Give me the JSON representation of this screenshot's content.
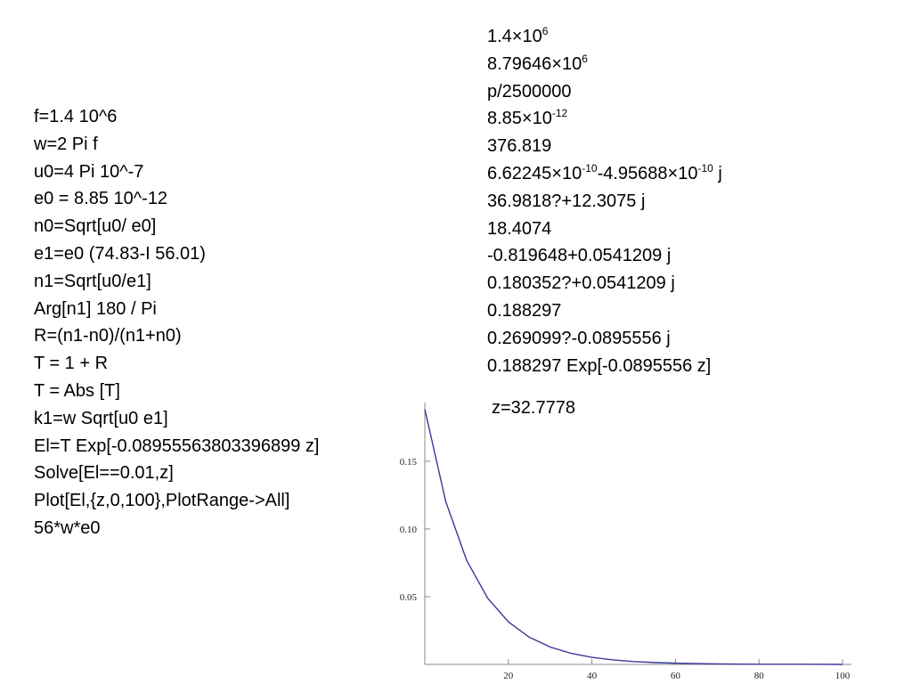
{
  "code": [
    "f=1.4 10^6",
    "w=2 Pi f",
    "u0=4 Pi 10^-7",
    "e0 = 8.85 10^-12",
    "n0=Sqrt[u0/ e0]",
    "e1=e0 (74.83-I 56.01)",
    "n1=Sqrt[u0/e1]",
    "Arg[n1] 180 / Pi",
    "R=(n1-n0)/(n1+n0)",
    "T = 1 + R",
    "T = Abs [T]",
    "k1=w Sqrt[u0 e1]",
    "El=T Exp[-0.08955563803396899 z]",
    "Solve[El==0.01,z]",
    "Plot[El,{z,0,100},PlotRange->All]",
    "56*w*e0"
  ],
  "outputs": [
    [
      {
        "text": "1.4×10"
      },
      {
        "sup": "6"
      }
    ],
    [
      {
        "text": "8.79646×10"
      },
      {
        "sup": "6"
      }
    ],
    "p/2500000",
    [
      {
        "text": "8.85×10"
      },
      {
        "sup": "-12"
      }
    ],
    "376.819",
    [
      {
        "text": "6.62245×10"
      },
      {
        "sup": "-10"
      },
      {
        "text": "-4.95688×10"
      },
      {
        "sup": "-10"
      },
      {
        "text": " j"
      }
    ],
    "36.9818?+12.3075 j",
    "18.4074",
    "-0.819648+0.0541209 j",
    "0.180352?+0.0541209 j",
    "0.188297",
    "0.269099?-0.0895556 j",
    "0.188297 Exp[-0.0895556 z]"
  ],
  "solution": "z=32.7778",
  "chart_data": {
    "type": "line",
    "x": [
      0,
      5,
      10,
      15,
      20,
      25,
      30,
      35,
      40,
      45,
      50,
      55,
      60,
      70,
      80,
      90,
      100
    ],
    "series": [
      {
        "color": "#3a3a9a",
        "values": [
          0.1883,
          0.1203,
          0.0769,
          0.0491,
          0.0314,
          0.0201,
          0.0128,
          0.0082,
          0.0052,
          0.0033,
          0.0021,
          0.0014,
          0.0009,
          0.0004,
          0.0001,
          0.0001,
          0.0
        ]
      }
    ],
    "xlim": [
      0,
      100
    ],
    "ylim": [
      0,
      0.19
    ],
    "xticks": [
      20,
      40,
      60,
      80,
      100
    ],
    "yticks": [
      0.05,
      {
        "value": 0.1,
        "label": "0.10"
      },
      0.15
    ]
  }
}
